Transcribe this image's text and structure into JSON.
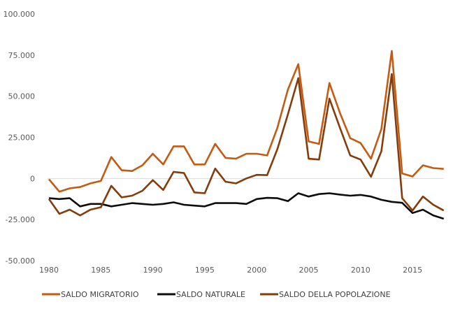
{
  "chart_data": {
    "type": "line",
    "title": "",
    "xlabel": "",
    "ylabel": "",
    "ylim": [
      -50000,
      100000
    ],
    "yticks": [
      -50000,
      -25000,
      0,
      25000,
      50000,
      75000,
      100000
    ],
    "ytick_labels": [
      "-50.000",
      "-25.000",
      "0",
      "25.000",
      "50.000",
      "75.000",
      "100.000"
    ],
    "xticks": [
      1980,
      1985,
      1990,
      1995,
      2000,
      2005,
      2010,
      2015
    ],
    "xtick_labels": [
      "1980",
      "1985",
      "1990",
      "1995",
      "2000",
      "2005",
      "2010",
      "2015"
    ],
    "grid": "zero line only",
    "legend_position": "bottom",
    "x": [
      1980,
      1981,
      1982,
      1983,
      1984,
      1985,
      1986,
      1987,
      1988,
      1989,
      1990,
      1991,
      1992,
      1993,
      1994,
      1995,
      1996,
      1997,
      1998,
      1999,
      2000,
      2001,
      2002,
      2003,
      2004,
      2005,
      2006,
      2007,
      2008,
      2009,
      2010,
      2011,
      2012,
      2013,
      2014,
      2015,
      2016,
      2017,
      2018
    ],
    "series": [
      {
        "name": "SALDO MIGRATORIO",
        "color": "#C55A11",
        "values": [
          -500,
          -8000,
          -6000,
          -5200,
          -3000,
          -1500,
          13000,
          5000,
          4500,
          8000,
          15000,
          8500,
          19500,
          19500,
          8500,
          8500,
          21000,
          12500,
          12000,
          15000,
          15000,
          14000,
          31000,
          54000,
          69500,
          22500,
          21000,
          58000,
          40000,
          24500,
          21500,
          12000,
          30000,
          77500,
          3000,
          1200,
          8000,
          6300,
          5800
        ]
      },
      {
        "name": "SALDO NATURALE",
        "color": "#0D0D0D",
        "values": [
          -12000,
          -12500,
          -12000,
          -17000,
          -15500,
          -15500,
          -17000,
          -16000,
          -15000,
          -15500,
          -16000,
          -15500,
          -14500,
          -16000,
          -16500,
          -17000,
          -15000,
          -15000,
          -15000,
          -15500,
          -12500,
          -11800,
          -12000,
          -13800,
          -9000,
          -11000,
          -9500,
          -9000,
          -9800,
          -10500,
          -10000,
          -11000,
          -13000,
          -14200,
          -14800,
          -21000,
          -19000,
          -22500,
          -24500
        ]
      },
      {
        "name": "SALDO  DELLA POPOLAZIONE",
        "color": "#843C0C",
        "values": [
          -12500,
          -21500,
          -19000,
          -22500,
          -19000,
          -17500,
          -4500,
          -11500,
          -10500,
          -7500,
          -1000,
          -7000,
          4000,
          3300,
          -8500,
          -9000,
          6000,
          -2000,
          -3000,
          0,
          2200,
          2000,
          18000,
          39000,
          61000,
          12000,
          11500,
          48500,
          31000,
          14000,
          11500,
          1000,
          16500,
          63500,
          -12000,
          -19500,
          -11000,
          -16000,
          -19500
        ]
      }
    ]
  }
}
